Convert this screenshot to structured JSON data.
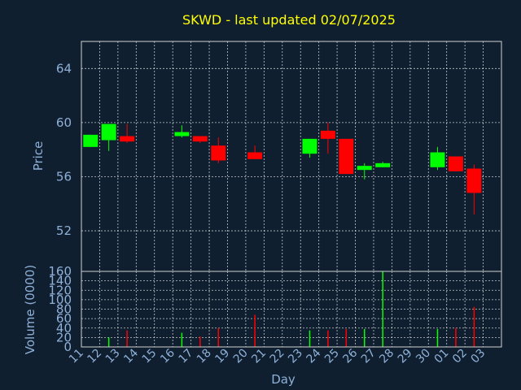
{
  "chart_data": [
    {
      "type": "candlestick",
      "title": "SKWD - last updated 02/07/2025",
      "ylabel": "Price",
      "ylim": [
        49,
        66
      ],
      "yticks": [
        52,
        56,
        60,
        64
      ],
      "grid": true,
      "up_color": "#00ff00",
      "down_color": "#ff0000",
      "candles": [
        {
          "day": "11",
          "open": 58.2,
          "high": 59.1,
          "low": 58.2,
          "close": 59.1
        },
        {
          "day": "12",
          "open": 58.7,
          "high": 59.9,
          "low": 57.9,
          "close": 59.9
        },
        {
          "day": "13",
          "open": 59.0,
          "high": 59.9,
          "low": 58.5,
          "close": 58.6
        },
        {
          "day": "16",
          "open": 59.0,
          "high": 59.8,
          "low": 58.9,
          "close": 59.3
        },
        {
          "day": "17",
          "open": 59.0,
          "high": 59.0,
          "low": 58.5,
          "close": 58.6
        },
        {
          "day": "18",
          "open": 58.3,
          "high": 58.9,
          "low": 57.0,
          "close": 57.2
        },
        {
          "day": "20",
          "open": 57.8,
          "high": 58.3,
          "low": 57.3,
          "close": 57.3
        },
        {
          "day": "23",
          "open": 57.7,
          "high": 58.8,
          "low": 57.4,
          "close": 58.8
        },
        {
          "day": "24",
          "open": 59.4,
          "high": 60.0,
          "low": 57.7,
          "close": 58.8
        },
        {
          "day": "25",
          "open": 58.8,
          "high": 58.8,
          "low": 56.2,
          "close": 56.2
        },
        {
          "day": "26",
          "open": 56.5,
          "high": 57.0,
          "low": 55.8,
          "close": 56.8
        },
        {
          "day": "27",
          "open": 56.7,
          "high": 57.1,
          "low": 56.7,
          "close": 57.0
        },
        {
          "day": "30",
          "open": 56.7,
          "high": 58.2,
          "low": 56.5,
          "close": 57.8
        },
        {
          "day": "01",
          "open": 57.5,
          "high": 57.5,
          "low": 56.4,
          "close": 56.4
        },
        {
          "day": "02",
          "open": 56.6,
          "high": 56.9,
          "low": 53.2,
          "close": 54.8
        }
      ]
    },
    {
      "type": "bar",
      "ylabel": "Volume (0000)",
      "xlabel": "Day",
      "ylim": [
        0,
        160
      ],
      "yticks": [
        0,
        20,
        40,
        60,
        80,
        100,
        120,
        140,
        160
      ],
      "grid": true,
      "categories": [
        "11",
        "12",
        "13",
        "14",
        "15",
        "16",
        "17",
        "18",
        "19",
        "20",
        "21",
        "22",
        "23",
        "24",
        "25",
        "26",
        "27",
        "28",
        "29",
        "30",
        "01",
        "02",
        "03"
      ],
      "values": [
        0,
        20,
        35,
        0,
        0,
        30,
        22,
        40,
        0,
        68,
        0,
        0,
        35,
        35,
        38,
        38,
        160,
        0,
        0,
        38,
        40,
        85,
        0
      ],
      "bar_colors": [
        "#00ff00",
        "#00ff00",
        "#ff0000",
        "#00ff00",
        "#00ff00",
        "#00ff00",
        "#ff0000",
        "#ff0000",
        "#00ff00",
        "#ff0000",
        "#00ff00",
        "#00ff00",
        "#00ff00",
        "#ff0000",
        "#ff0000",
        "#00ff00",
        "#00ff00",
        "#00ff00",
        "#00ff00",
        "#00ff00",
        "#ff0000",
        "#ff0000",
        "#00ff00"
      ]
    }
  ]
}
